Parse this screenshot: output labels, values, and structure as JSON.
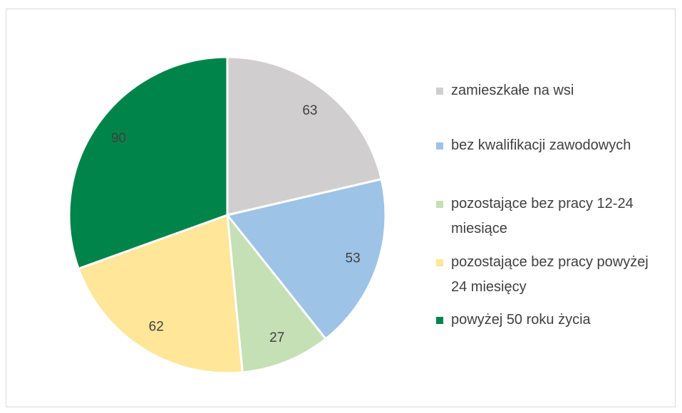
{
  "chart_data": {
    "type": "pie",
    "categories": [
      "zamieszkałe na wsi",
      "bez kwalifikacji zawodowych",
      "pozostające bez pracy 12-24 miesiące",
      "pozostające bez pracy powyżej 24 miesięcy",
      "powyżej 50 roku życia"
    ],
    "values": [
      63,
      53,
      27,
      62,
      90
    ],
    "colors": [
      "#d0cece",
      "#9dc3e6",
      "#c5e0b4",
      "#ffe699",
      "#00844a"
    ],
    "legend": "right"
  }
}
